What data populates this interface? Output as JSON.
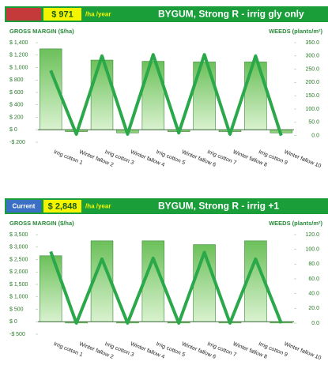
{
  "chart_data": [
    {
      "type": "combo",
      "badge": null,
      "header_value": "$ 971",
      "header_unit": "/ha /year",
      "title": "BYGUM, Strong R - irrig gly only",
      "y_label": "GROSS MARGIN ($/ha)",
      "y2_label": "WEEDS (plants/m²)",
      "categories": [
        "Irrig cotton 1",
        "Winter fallow 2",
        "Irrig cotton 3",
        "Winter fallow 4",
        "Irrig cotton 5",
        "Winter fallow 6",
        "Irrig cotton 7",
        "Winter fallow 8",
        "Irrig cotton 9",
        "Winter fallow 10"
      ],
      "series": [
        {
          "name": "Gross margin",
          "kind": "bar",
          "color": "#8fd07a",
          "values": [
            1300,
            -30,
            1120,
            -50,
            1100,
            -30,
            1090,
            -30,
            1090,
            -50
          ]
        },
        {
          "name": "Weeds",
          "kind": "line",
          "axis": "y2",
          "color": "#2aa84a",
          "values": [
            245,
            5,
            300,
            5,
            305,
            10,
            305,
            5,
            300,
            0
          ]
        }
      ],
      "ylim": [
        -200,
        1400
      ],
      "yticks": [
        {
          "value": -200,
          "label": "-$ 200"
        },
        {
          "value": 0,
          "label": "$ 0"
        },
        {
          "value": 200,
          "label": "$ 200"
        },
        {
          "value": 400,
          "label": "$ 400"
        },
        {
          "value": 600,
          "label": "$ 600"
        },
        {
          "value": 800,
          "label": "$ 800"
        },
        {
          "value": 1000,
          "label": "$ 1,000"
        },
        {
          "value": 1200,
          "label": "$ 1,200"
        },
        {
          "value": 1400,
          "label": "$ 1,400"
        }
      ],
      "y2lim": [
        -25,
        350
      ],
      "y2ticks": [
        {
          "value": 0,
          "label": "0.0"
        },
        {
          "value": 50,
          "label": "50.0"
        },
        {
          "value": 100,
          "label": "100.0"
        },
        {
          "value": 150,
          "label": "150.0"
        },
        {
          "value": 200,
          "label": "200.0"
        },
        {
          "value": 250,
          "label": "250.0"
        },
        {
          "value": 300,
          "label": "300.0"
        },
        {
          "value": 350,
          "label": "350.0"
        }
      ]
    },
    {
      "type": "combo",
      "badge": "Current",
      "header_value": "$ 2,848",
      "header_unit": "/ha /year",
      "title": "BYGUM, Strong R - irrig +1",
      "y_label": "GROSS MARGIN ($/ha)",
      "y2_label": "WEEDS (plants/m²)",
      "categories": [
        "Irrig cotton 1",
        "Winter fallow 2",
        "Irrig cotton 3",
        "Winter fallow 4",
        "Irrig cotton 5",
        "Winter fallow 6",
        "Irrig cotton 7",
        "Winter fallow 8",
        "Irrig cotton 9",
        "Winter fallow 10"
      ],
      "series": [
        {
          "name": "Gross margin",
          "kind": "bar",
          "color": "#8fd07a",
          "values": [
            2650,
            -50,
            3250,
            -50,
            3250,
            -50,
            3100,
            -50,
            3250,
            -50
          ]
        },
        {
          "name": "Weeds",
          "kind": "line",
          "axis": "y2",
          "color": "#2aa84a",
          "values": [
            97,
            0,
            87,
            0,
            88,
            0,
            96,
            0,
            87,
            0
          ]
        }
      ],
      "ylim": [
        -500,
        3500
      ],
      "yticks": [
        {
          "value": -500,
          "label": "-$ 500"
        },
        {
          "value": 0,
          "label": "$ 0"
        },
        {
          "value": 500,
          "label": "$ 500"
        },
        {
          "value": 1000,
          "label": "$ 1,000"
        },
        {
          "value": 1500,
          "label": "$ 1,500"
        },
        {
          "value": 2000,
          "label": "$ 2,000"
        },
        {
          "value": 2500,
          "label": "$ 2,500"
        },
        {
          "value": 3000,
          "label": "$ 3,000"
        },
        {
          "value": 3500,
          "label": "$ 3,500"
        }
      ],
      "y2lim": [
        -15,
        120
      ],
      "y2ticks": [
        {
          "value": 0,
          "label": "0.0"
        },
        {
          "value": 20,
          "label": "20.0"
        },
        {
          "value": 40,
          "label": "40.0"
        },
        {
          "value": 60,
          "label": "60.0"
        },
        {
          "value": 80,
          "label": "80.0"
        },
        {
          "value": 100,
          "label": "100.0"
        },
        {
          "value": 120,
          "label": "120.0"
        }
      ]
    }
  ]
}
